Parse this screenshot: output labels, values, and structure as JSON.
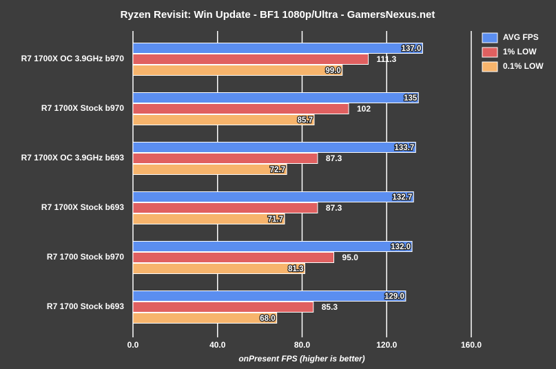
{
  "chart_data": {
    "type": "hbar",
    "title": "Ryzen Revisit: Win Update - BF1 1080p/Ultra - GamersNexus.net",
    "x_label": "onPresent FPS (higher is better)",
    "categories": [
      "R7 1700X OC 3.9GHz b970",
      "R7 1700X Stock b970",
      "R7 1700X OC 3.9GHz b693",
      "R7 1700X Stock b693",
      "R7 1700 Stock b970",
      "R7 1700 Stock b693"
    ],
    "series": [
      {
        "name": "AVG FPS",
        "color": "#5b8ef0",
        "values": [
          137.0,
          135,
          133.7,
          132.7,
          132.0,
          129.0
        ],
        "value_labels": [
          "137.0",
          "135",
          "133.7",
          "132.7",
          "132.0",
          "129.0"
        ]
      },
      {
        "name": "1% LOW",
        "color": "#e06060",
        "values": [
          111.3,
          102,
          87.3,
          87.3,
          95.0,
          85.3
        ],
        "value_labels": [
          "111.3",
          "102",
          "87.3",
          "87.3",
          "95.0",
          "85.3"
        ]
      },
      {
        "name": "0.1% LOW",
        "color": "#f7b46c",
        "values": [
          99.0,
          85.7,
          72.7,
          71.7,
          81.3,
          68.0
        ],
        "value_labels": [
          "99.0",
          "85.7",
          "72.7",
          "71.7",
          "81.3",
          "68.0"
        ]
      }
    ],
    "xlim": [
      0,
      160
    ],
    "xticks": [
      {
        "value": 0,
        "label": "0.0"
      },
      {
        "value": 40,
        "label": "40.0"
      },
      {
        "value": 80,
        "label": "80.0"
      },
      {
        "value": 120,
        "label": "120.0"
      },
      {
        "value": 160,
        "label": "160.0"
      }
    ],
    "grid": true,
    "legend": "top-right"
  }
}
